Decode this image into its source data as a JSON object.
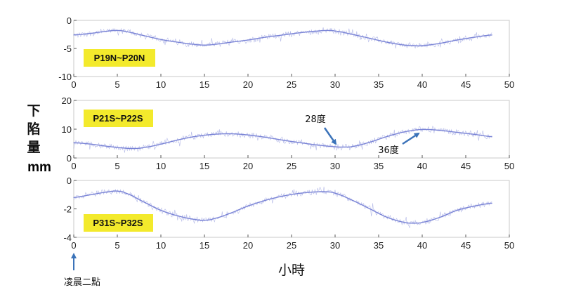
{
  "ylabel": {
    "chars": [
      "下",
      "陷",
      "量"
    ],
    "unit": "mm"
  },
  "xlabel": "小時",
  "start_note": "凌晨二點",
  "colors": {
    "series": "#7a84d6",
    "tag_bg": "#f3ea2c",
    "arrow": "#3b73b9",
    "axis": "#555555"
  },
  "chart_data": [
    {
      "type": "line",
      "tag": "P19N~P20N",
      "xlim": [
        0,
        50
      ],
      "ylim": [
        -10,
        0
      ],
      "xticks": [
        0,
        5,
        10,
        15,
        20,
        25,
        30,
        35,
        40,
        45,
        50
      ],
      "yticks": [
        0,
        -5,
        -10
      ],
      "x": [
        0,
        2,
        4,
        5,
        6,
        8,
        10,
        12,
        14,
        15,
        16,
        18,
        20,
        22,
        24,
        26,
        28,
        29,
        30,
        32,
        34,
        36,
        38,
        39,
        40,
        42,
        44,
        46,
        48
      ],
      "values": [
        -2.6,
        -2.3,
        -1.9,
        -1.8,
        -2.0,
        -2.7,
        -3.4,
        -3.9,
        -4.3,
        -4.4,
        -4.3,
        -3.9,
        -3.5,
        -3.0,
        -2.6,
        -2.2,
        -1.9,
        -1.8,
        -1.9,
        -2.5,
        -3.2,
        -3.9,
        -4.4,
        -4.5,
        -4.5,
        -4.1,
        -3.5,
        -3.0,
        -2.6
      ]
    },
    {
      "type": "line",
      "tag": "P21S~P22S",
      "xlim": [
        0,
        50
      ],
      "ylim": [
        0,
        20
      ],
      "xticks": [
        0,
        5,
        10,
        15,
        20,
        25,
        30,
        35,
        40,
        45,
        50
      ],
      "yticks": [
        20,
        10,
        0
      ],
      "x": [
        0,
        2,
        4,
        6,
        7,
        8,
        10,
        12,
        14,
        16,
        18,
        20,
        22,
        24,
        26,
        28,
        30,
        31,
        32,
        34,
        36,
        38,
        40,
        42,
        44,
        46,
        48
      ],
      "values": [
        5.3,
        4.8,
        4.0,
        3.4,
        3.3,
        3.6,
        4.8,
        6.3,
        7.5,
        8.2,
        8.4,
        8.0,
        7.2,
        6.2,
        5.3,
        4.5,
        3.9,
        3.8,
        4.0,
        5.5,
        7.5,
        9.1,
        9.9,
        9.6,
        8.9,
        8.2,
        7.4
      ],
      "annotations": [
        {
          "text": "28度",
          "x": 31,
          "y": 4.2
        },
        {
          "text": "36度",
          "x": 40,
          "y": 9.8
        }
      ]
    },
    {
      "type": "line",
      "tag": "P31S~P32S",
      "xlim": [
        0,
        50
      ],
      "ylim": [
        -4,
        0
      ],
      "xticks": [
        0,
        5,
        10,
        15,
        20,
        25,
        30,
        35,
        40,
        45,
        50
      ],
      "yticks": [
        0,
        -2,
        -4
      ],
      "x": [
        0,
        2,
        4,
        5,
        6,
        8,
        10,
        12,
        14,
        15,
        16,
        18,
        20,
        22,
        24,
        26,
        28,
        29,
        30,
        32,
        34,
        36,
        38,
        39,
        40,
        42,
        44,
        46,
        48
      ],
      "values": [
        -1.2,
        -1.0,
        -0.8,
        -0.75,
        -0.9,
        -1.5,
        -2.1,
        -2.5,
        -2.75,
        -2.8,
        -2.7,
        -2.3,
        -1.8,
        -1.4,
        -1.1,
        -0.9,
        -0.8,
        -0.8,
        -0.9,
        -1.4,
        -2.0,
        -2.6,
        -2.95,
        -3.0,
        -2.95,
        -2.6,
        -2.1,
        -1.8,
        -1.6
      ]
    }
  ]
}
